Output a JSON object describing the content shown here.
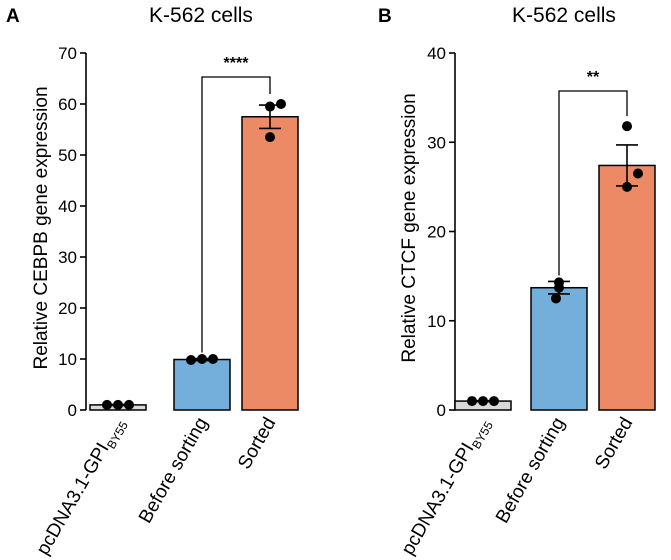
{
  "chart_data": [
    {
      "panel": "A",
      "type": "bar",
      "title": "K-562 cells",
      "ylabel": "Relative CEBPB gene expression",
      "xlabel": "",
      "ylim": [
        0,
        70
      ],
      "yticks": [
        0,
        10,
        20,
        30,
        40,
        50,
        60,
        70
      ],
      "categories": [
        {
          "label": "pcDNA3.1-GPI",
          "subscript": "BY55"
        },
        {
          "label": "Before sorting",
          "subscript": ""
        },
        {
          "label": "Sorted",
          "subscript": ""
        }
      ],
      "values": [
        1.0,
        9.9,
        57.5
      ],
      "errors": [
        0.1,
        0.2,
        2.3
      ],
      "points": [
        [
          1.0,
          1.0,
          1.0
        ],
        [
          9.8,
          10.0,
          10.0
        ],
        [
          59.5,
          60.0,
          53.5
        ]
      ],
      "colors": [
        "#d9d9d9",
        "#74aedb",
        "#ec8a66"
      ],
      "significance": {
        "from": 1,
        "to": 2,
        "label": "****"
      }
    },
    {
      "panel": "B",
      "type": "bar",
      "title": "K-562 cells",
      "ylabel": "Relative CTCF gene expression",
      "xlabel": "",
      "ylim": [
        0,
        40
      ],
      "yticks": [
        0,
        10,
        20,
        30,
        40
      ],
      "categories": [
        {
          "label": "pcDNA3.1-GPI",
          "subscript": "BY55"
        },
        {
          "label": "Before sorting",
          "subscript": ""
        },
        {
          "label": "Sorted",
          "subscript": ""
        }
      ],
      "values": [
        1.0,
        13.7,
        27.4
      ],
      "errors": [
        0.05,
        0.7,
        2.3
      ],
      "points": [
        [
          1.0,
          1.0,
          1.0
        ],
        [
          14.3,
          13.7,
          12.5
        ],
        [
          31.8,
          26.5,
          25.0
        ]
      ],
      "colors": [
        "#d9d9d9",
        "#74aedb",
        "#ec8a66"
      ],
      "significance": {
        "from": 1,
        "to": 2,
        "label": "**"
      }
    }
  ]
}
